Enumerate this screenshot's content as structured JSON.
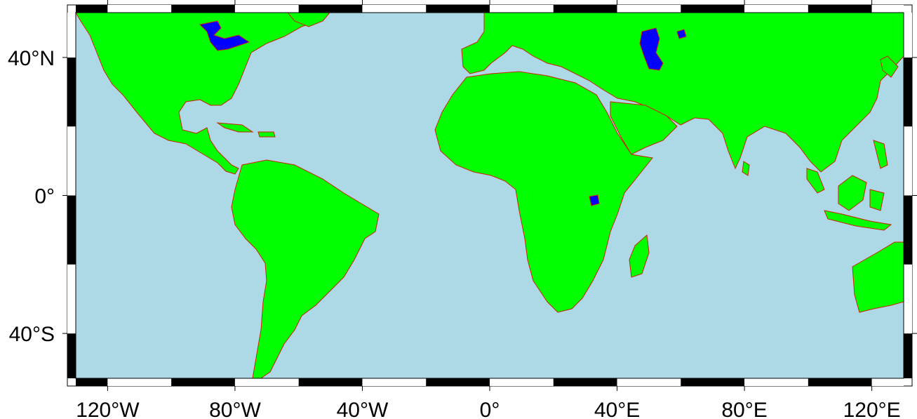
{
  "map": {
    "projection": "plate-carree",
    "lon_range": [
      -130,
      130
    ],
    "lat_range": [
      -53,
      53
    ],
    "colors": {
      "ocean": "#add8e6",
      "land": "#00ff00",
      "coastline": "#cc2200",
      "lakes": "#0000ff",
      "frame": "#000000",
      "frame_alt": "#ffffff"
    },
    "frame_style": "fancy-checkerboard",
    "frame_interval_deg": 20,
    "x_ticks": [
      {
        "value": -120,
        "label": "120°W"
      },
      {
        "value": -80,
        "label": "80°W"
      },
      {
        "value": -40,
        "label": "40°W"
      },
      {
        "value": 0,
        "label": "0°"
      },
      {
        "value": 40,
        "label": "40°E"
      },
      {
        "value": 80,
        "label": "80°E"
      },
      {
        "value": 120,
        "label": "120°E"
      }
    ],
    "y_ticks": [
      {
        "value": 40,
        "label": "40°N"
      },
      {
        "value": 0,
        "label": "0°"
      },
      {
        "value": -40,
        "label": "40°S"
      }
    ]
  }
}
